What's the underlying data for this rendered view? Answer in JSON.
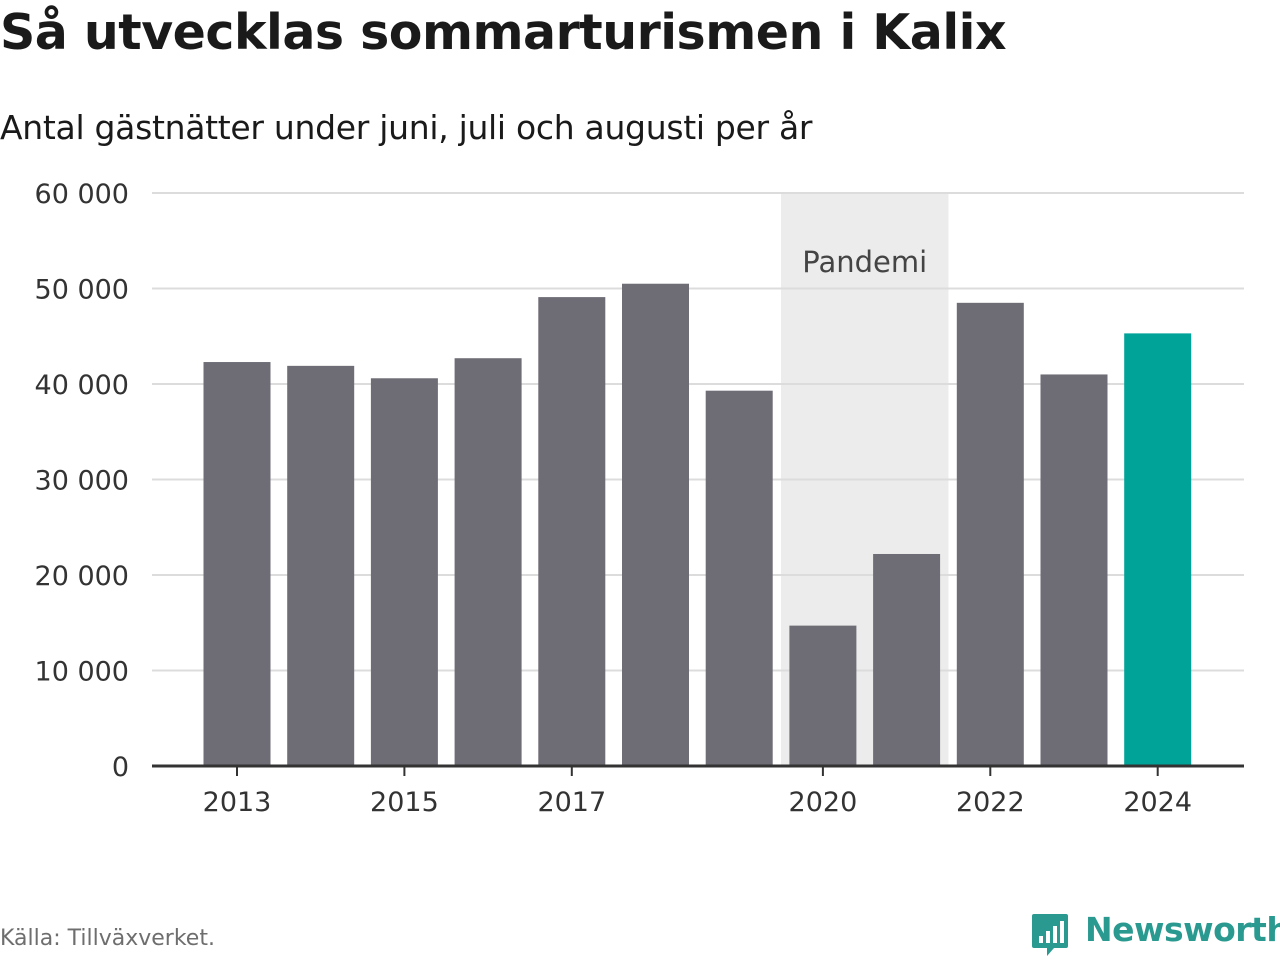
{
  "header": {
    "title": "Så utvecklas sommarturismen i Kalix",
    "subtitle": "Antal gästnätter under juni, juli och augusti per år"
  },
  "footer": {
    "source": "Källa: Tillväxverket.",
    "brand": "Newsworthy",
    "brand_color": "#2a9a91"
  },
  "chart_data": {
    "type": "bar",
    "categories": [
      "2013",
      "2014",
      "2015",
      "2016",
      "2017",
      "2018",
      "2019",
      "2020",
      "2021",
      "2022",
      "2023",
      "2024"
    ],
    "values": [
      42300,
      41900,
      40600,
      42700,
      49100,
      50500,
      39300,
      14700,
      22200,
      48500,
      41000,
      45300
    ],
    "x_tick_labels": [
      "2013",
      "2015",
      "2017",
      "2020",
      "2022",
      "2024"
    ],
    "y_ticks": [
      0,
      10000,
      20000,
      30000,
      40000,
      50000,
      60000
    ],
    "y_tick_labels": [
      "0",
      "10 000",
      "20 000",
      "30 000",
      "40 000",
      "50 000",
      "60 000"
    ],
    "ylim": [
      0,
      60000
    ],
    "xlabel": "",
    "ylabel": "",
    "grid": true,
    "annotation": {
      "label": "Pandemi",
      "from": "2020",
      "to": "2021"
    },
    "highlight_category": "2024",
    "colors": {
      "bar": "#6e6d75",
      "highlight": "#00a398",
      "band": "#ececec",
      "grid": "#dcdcdc",
      "axis": "#333333"
    }
  }
}
